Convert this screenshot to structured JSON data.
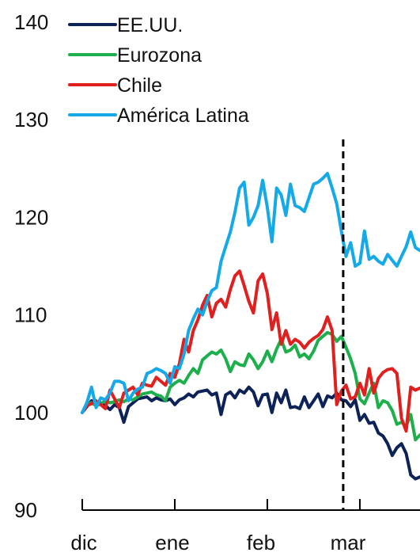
{
  "chart_data": {
    "type": "line",
    "title": "",
    "xlabel": "",
    "ylabel": "",
    "ylim": [
      90,
      140
    ],
    "y_ticks": [
      90,
      100,
      110,
      120,
      130,
      140
    ],
    "x_tick_labels": [
      "dic",
      "ene",
      "feb",
      "mar"
    ],
    "xlim": [
      0,
      3.65
    ],
    "grid": false,
    "legend_position": "top-left",
    "reference_line": {
      "x": 2.82,
      "style": "dashed",
      "color": "#000000"
    },
    "x": [
      0.0,
      0.05,
      0.1,
      0.15,
      0.2,
      0.25,
      0.3,
      0.35,
      0.4,
      0.45,
      0.5,
      0.55,
      0.6,
      0.65,
      0.7,
      0.75,
      0.8,
      0.85,
      0.9,
      0.95,
      1.0,
      1.05,
      1.1,
      1.15,
      1.2,
      1.25,
      1.3,
      1.35,
      1.4,
      1.45,
      1.5,
      1.55,
      1.6,
      1.65,
      1.7,
      1.75,
      1.8,
      1.85,
      1.9,
      1.95,
      2.0,
      2.05,
      2.1,
      2.15,
      2.2,
      2.25,
      2.3,
      2.35,
      2.4,
      2.45,
      2.5,
      2.55,
      2.6,
      2.65,
      2.7,
      2.75,
      2.8,
      2.85,
      2.9,
      2.95,
      3.0,
      3.05,
      3.1,
      3.15,
      3.2,
      3.25,
      3.3,
      3.35,
      3.4,
      3.45,
      3.5,
      3.55,
      3.6,
      3.65
    ],
    "series": [
      {
        "name": "EE.UU.",
        "color": "#0d2257",
        "values": [
          100.0,
          100.6,
          101.2,
          100.8,
          101.0,
          100.7,
          100.3,
          100.8,
          100.5,
          99.0,
          100.6,
          101.0,
          101.4,
          101.5,
          101.6,
          101.2,
          101.5,
          101.3,
          101.2,
          101.4,
          100.8,
          101.3,
          101.5,
          101.9,
          101.6,
          102.1,
          102.2,
          102.3,
          101.8,
          102.0,
          99.8,
          101.8,
          102.1,
          101.5,
          102.3,
          102.0,
          102.6,
          102.1,
          100.7,
          101.8,
          101.9,
          100.0,
          102.0,
          101.0,
          102.3,
          100.5,
          100.6,
          100.4,
          101.6,
          100.5,
          101.2,
          101.9,
          100.6,
          101.7,
          101.5,
          102.0,
          101.3,
          101.2,
          100.6,
          101.3,
          99.2,
          99.8,
          98.9,
          99.0,
          97.9,
          97.6,
          96.8,
          95.6,
          96.4,
          96.8,
          95.8,
          93.6,
          93.2,
          93.4
        ]
      },
      {
        "name": "Eurozona",
        "color": "#1caf4c",
        "values": [
          100.0,
          100.8,
          101.0,
          100.7,
          100.9,
          101.2,
          101.0,
          101.1,
          101.3,
          101.1,
          101.4,
          101.3,
          101.6,
          101.9,
          102.0,
          102.1,
          101.8,
          101.7,
          101.2,
          102.6,
          103.0,
          103.3,
          103.0,
          103.8,
          104.5,
          104.0,
          105.4,
          105.8,
          106.2,
          106.0,
          106.4,
          105.5,
          104.2,
          105.2,
          104.9,
          104.8,
          106.0,
          105.4,
          104.5,
          105.2,
          106.3,
          105.2,
          106.5,
          107.5,
          106.2,
          106.4,
          106.9,
          105.7,
          106.0,
          105.5,
          106.3,
          107.4,
          107.8,
          108.2,
          108.0,
          107.3,
          107.8,
          106.7,
          105.5,
          104.0,
          101.4,
          100.9,
          102.0,
          103.0,
          100.5,
          101.2,
          101.0,
          100.2,
          98.8,
          99.0,
          98.6,
          99.8,
          97.2,
          97.7
        ]
      },
      {
        "name": "Chile",
        "color": "#e01f1f",
        "values": [
          100.0,
          100.7,
          100.9,
          101.2,
          100.8,
          100.4,
          102.3,
          101.4,
          100.5,
          102.0,
          102.3,
          102.6,
          101.8,
          103.0,
          102.8,
          102.7,
          103.6,
          103.2,
          102.8,
          104.0,
          103.6,
          105.0,
          107.5,
          106.2,
          108.4,
          109.5,
          111.0,
          112.0,
          109.8,
          111.2,
          111.6,
          110.8,
          112.6,
          114.0,
          114.5,
          113.0,
          111.4,
          110.2,
          113.5,
          114.2,
          112.2,
          108.5,
          110.2,
          107.0,
          108.4,
          107.0,
          107.5,
          107.2,
          106.6,
          107.2,
          107.6,
          107.9,
          108.5,
          109.8,
          108.4,
          100.8,
          102.2,
          102.8,
          101.4,
          101.6,
          103.0,
          101.8,
          104.5,
          102.0,
          103.5,
          104.1,
          104.4,
          104.5,
          104.0,
          99.4,
          98.1,
          102.6,
          102.3,
          102.5
        ]
      },
      {
        "name": "América Latina",
        "color": "#16a9e8",
        "values": [
          100.0,
          101.0,
          102.6,
          100.5,
          101.5,
          101.3,
          102.0,
          103.2,
          103.2,
          103.0,
          101.2,
          102.0,
          102.4,
          102.6,
          104.0,
          104.2,
          104.5,
          104.3,
          104.0,
          103.0,
          104.7,
          104.5,
          106.0,
          108.4,
          109.6,
          110.6,
          110.0,
          111.4,
          112.5,
          112.8,
          115.5,
          117.0,
          118.5,
          120.5,
          123.0,
          123.6,
          119.2,
          120.0,
          121.2,
          123.8,
          121.0,
          117.5,
          123.0,
          122.3,
          120.2,
          123.4,
          121.2,
          121.0,
          120.6,
          122.0,
          123.4,
          123.6,
          124.0,
          124.5,
          123.0,
          121.4,
          118.6,
          116.0,
          117.4,
          115.0,
          115.3,
          118.6,
          115.7,
          116.0,
          115.5,
          115.2,
          116.2,
          115.6,
          115.0,
          116.0,
          117.0,
          118.5,
          116.9,
          116.6
        ]
      }
    ]
  }
}
